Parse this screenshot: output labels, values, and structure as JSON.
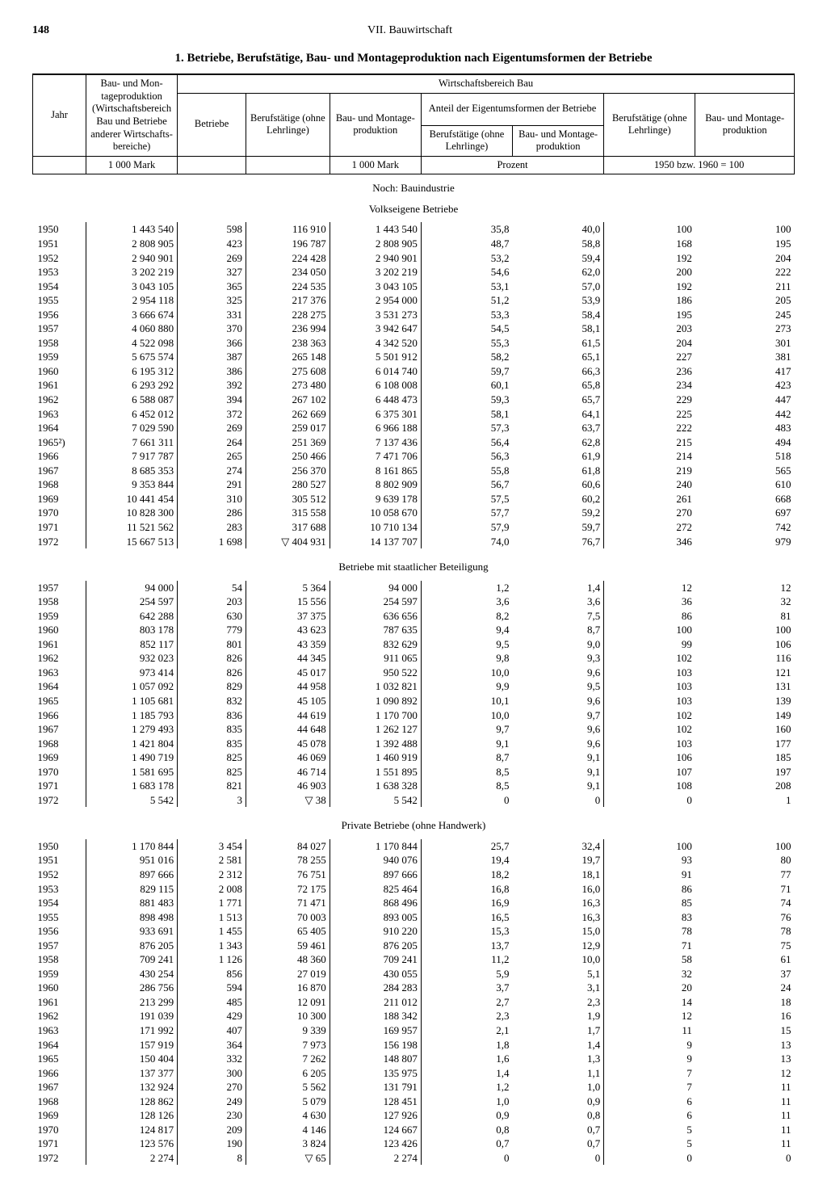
{
  "page_number": "148",
  "chapter": "VII. Bauwirtschaft",
  "title": "1. Betriebe, Berufstätige, Bau- und Montageproduktion nach Eigentumsformen der Betriebe",
  "headers": {
    "jahr": "Jahr",
    "col2": "Bau- und Mon­tageproduktion (Wirtschaftsbe­reich Bau und Betriebe anderer Wirtschafts­bereiche)",
    "wirtschaft": "Wirtschaftsbereich Bau",
    "betriebe": "Betriebe",
    "berufstaetige": "Berufstätige (ohne Lehrlinge)",
    "bau_montage": "Bau- und Montage­produktion",
    "anteil": "Anteil der Eigentumsformen der Betriebe",
    "anteil_beruf": "Berufstätige (ohne Lehrlinge)",
    "anteil_bau": "Bau- und Montage­produktion",
    "idx_beruf": "Berufstätige (ohne Lehrlinge)",
    "idx_bau": "Bau- und Montage­produktion",
    "unit_mark": "1 000 Mark",
    "unit_prozent": "Prozent",
    "unit_index": "1950 bzw. 1960 = 100"
  },
  "sections": {
    "main": "Noch: Bauindustrie",
    "s1": "Volkseigene Betriebe",
    "s2": "Betriebe mit staatlicher Beteiligung",
    "s3": "Private Betriebe (ohne Handwerk)"
  },
  "data": {
    "volkseigene": [
      [
        "1950",
        "1 443 540",
        "598",
        "116 910",
        "1 443 540",
        "35,8",
        "40,0",
        "100",
        "100"
      ],
      [
        "1951",
        "2 808 905",
        "423",
        "196 787",
        "2 808 905",
        "48,7",
        "58,8",
        "168",
        "195"
      ],
      [
        "1952",
        "2 940 901",
        "269",
        "224 428",
        "2 940 901",
        "53,2",
        "59,4",
        "192",
        "204"
      ],
      [
        "1953",
        "3 202 219",
        "327",
        "234 050",
        "3 202 219",
        "54,6",
        "62,0",
        "200",
        "222"
      ],
      [
        "1954",
        "3 043 105",
        "365",
        "224 535",
        "3 043 105",
        "53,1",
        "57,0",
        "192",
        "211"
      ],
      [
        "1955",
        "2 954 118",
        "325",
        "217 376",
        "2 954 000",
        "51,2",
        "53,9",
        "186",
        "205"
      ],
      [
        "1956",
        "3 666 674",
        "331",
        "228 275",
        "3 531 273",
        "53,3",
        "58,4",
        "195",
        "245"
      ],
      [
        "1957",
        "4 060 880",
        "370",
        "236 994",
        "3 942 647",
        "54,5",
        "58,1",
        "203",
        "273"
      ],
      [
        "1958",
        "4 522 098",
        "366",
        "238 363",
        "4 342 520",
        "55,3",
        "61,5",
        "204",
        "301"
      ],
      [
        "1959",
        "5 675 574",
        "387",
        "265 148",
        "5 501 912",
        "58,2",
        "65,1",
        "227",
        "381"
      ],
      [
        "1960",
        "6 195 312",
        "386",
        "275 608",
        "6 014 740",
        "59,7",
        "66,3",
        "236",
        "417"
      ],
      [
        "1961",
        "6 293 292",
        "392",
        "273 480",
        "6 108 008",
        "60,1",
        "65,8",
        "234",
        "423"
      ],
      [
        "1962",
        "6 588 087",
        "394",
        "267 102",
        "6 448 473",
        "59,3",
        "65,7",
        "229",
        "447"
      ],
      [
        "1963",
        "6 452 012",
        "372",
        "262 669",
        "6 375 301",
        "58,1",
        "64,1",
        "225",
        "442"
      ],
      [
        "1964",
        "7 029 590",
        "269",
        "259 017",
        "6 966 188",
        "57,3",
        "63,7",
        "222",
        "483"
      ],
      [
        "1965²)",
        "7 661 311",
        "264",
        "251 369",
        "7 137 436",
        "56,4",
        "62,8",
        "215",
        "494"
      ],
      [
        "1966",
        "7 917 787",
        "265",
        "250 466",
        "7 471 706",
        "56,3",
        "61,9",
        "214",
        "518"
      ],
      [
        "1967",
        "8 685 353",
        "274",
        "256 370",
        "8 161 865",
        "55,8",
        "61,8",
        "219",
        "565"
      ],
      [
        "1968",
        "9 353 844",
        "291",
        "280 527",
        "8 802 909",
        "56,7",
        "60,6",
        "240",
        "610"
      ],
      [
        "1969",
        "10 441 454",
        "310",
        "305 512",
        "9 639 178",
        "57,5",
        "60,2",
        "261",
        "668"
      ],
      [
        "1970",
        "10 828 300",
        "286",
        "315 558",
        "10 058 670",
        "57,7",
        "59,2",
        "270",
        "697"
      ],
      [
        "1971",
        "11 521 562",
        "283",
        "317 688",
        "10 710 134",
        "57,9",
        "59,7",
        "272",
        "742"
      ],
      [
        "1972",
        "15 667 513",
        "1 698",
        "▽ 404 931",
        "14 137 707",
        "74,0",
        "76,7",
        "346",
        "979"
      ]
    ],
    "staatlich": [
      [
        "1957",
        "94 000",
        "54",
        "5 364",
        "94 000",
        "1,2",
        "1,4",
        "12",
        "12"
      ],
      [
        "1958",
        "254 597",
        "203",
        "15 556",
        "254 597",
        "3,6",
        "3,6",
        "36",
        "32"
      ],
      [
        "1959",
        "642 288",
        "630",
        "37 375",
        "636 656",
        "8,2",
        "7,5",
        "86",
        "81"
      ],
      [
        "1960",
        "803 178",
        "779",
        "43 623",
        "787 635",
        "9,4",
        "8,7",
        "100",
        "100"
      ],
      [
        "1961",
        "852 117",
        "801",
        "43 359",
        "832 629",
        "9,5",
        "9,0",
        "99",
        "106"
      ],
      [
        "1962",
        "932 023",
        "826",
        "44 345",
        "911 065",
        "9,8",
        "9,3",
        "102",
        "116"
      ],
      [
        "1963",
        "973 414",
        "826",
        "45 017",
        "950 522",
        "10,0",
        "9,6",
        "103",
        "121"
      ],
      [
        "1964",
        "1 057 092",
        "829",
        "44 958",
        "1 032 821",
        "9,9",
        "9,5",
        "103",
        "131"
      ],
      [
        "1965",
        "1 105 681",
        "832",
        "45 105",
        "1 090 892",
        "10,1",
        "9,6",
        "103",
        "139"
      ],
      [
        "1966",
        "1 185 793",
        "836",
        "44 619",
        "1 170 700",
        "10,0",
        "9,7",
        "102",
        "149"
      ],
      [
        "1967",
        "1 279 493",
        "835",
        "44 648",
        "1 262 127",
        "9,7",
        "9,6",
        "102",
        "160"
      ],
      [
        "1968",
        "1 421 804",
        "835",
        "45 078",
        "1 392 488",
        "9,1",
        "9,6",
        "103",
        "177"
      ],
      [
        "1969",
        "1 490 719",
        "825",
        "46 069",
        "1 460 919",
        "8,7",
        "9,1",
        "106",
        "185"
      ],
      [
        "1970",
        "1 581 695",
        "825",
        "46 714",
        "1 551 895",
        "8,5",
        "9,1",
        "107",
        "197"
      ],
      [
        "1971",
        "1 683 178",
        "821",
        "46 903",
        "1 638 328",
        "8,5",
        "9,1",
        "108",
        "208"
      ],
      [
        "1972",
        "5 542",
        "3",
        "▽ 38",
        "5 542",
        "0",
        "0",
        "0",
        "1"
      ]
    ],
    "privat": [
      [
        "1950",
        "1 170 844",
        "3 454",
        "84 027",
        "1 170 844",
        "25,7",
        "32,4",
        "100",
        "100"
      ],
      [
        "1951",
        "951 016",
        "2 581",
        "78 255",
        "940 076",
        "19,4",
        "19,7",
        "93",
        "80"
      ],
      [
        "1952",
        "897 666",
        "2 312",
        "76 751",
        "897 666",
        "18,2",
        "18,1",
        "91",
        "77"
      ],
      [
        "1953",
        "829 115",
        "2 008",
        "72 175",
        "825 464",
        "16,8",
        "16,0",
        "86",
        "71"
      ],
      [
        "1954",
        "881 483",
        "1 771",
        "71 471",
        "868 496",
        "16,9",
        "16,3",
        "85",
        "74"
      ],
      [
        "1955",
        "898 498",
        "1 513",
        "70 003",
        "893 005",
        "16,5",
        "16,3",
        "83",
        "76"
      ],
      [
        "1956",
        "933 691",
        "1 455",
        "65 405",
        "910 220",
        "15,3",
        "15,0",
        "78",
        "78"
      ],
      [
        "1957",
        "876 205",
        "1 343",
        "59 461",
        "876 205",
        "13,7",
        "12,9",
        "71",
        "75"
      ],
      [
        "1958",
        "709 241",
        "1 126",
        "48 360",
        "709 241",
        "11,2",
        "10,0",
        "58",
        "61"
      ],
      [
        "1959",
        "430 254",
        "856",
        "27 019",
        "430 055",
        "5,9",
        "5,1",
        "32",
        "37"
      ],
      [
        "1960",
        "286 756",
        "594",
        "16 870",
        "284 283",
        "3,7",
        "3,1",
        "20",
        "24"
      ],
      [
        "1961",
        "213 299",
        "485",
        "12 091",
        "211 012",
        "2,7",
        "2,3",
        "14",
        "18"
      ],
      [
        "1962",
        "191 039",
        "429",
        "10 300",
        "188 342",
        "2,3",
        "1,9",
        "12",
        "16"
      ],
      [
        "1963",
        "171 992",
        "407",
        "9 339",
        "169 957",
        "2,1",
        "1,7",
        "11",
        "15"
      ],
      [
        "1964",
        "157 919",
        "364",
        "7 973",
        "156 198",
        "1,8",
        "1,4",
        "9",
        "13"
      ],
      [
        "1965",
        "150 404",
        "332",
        "7 262",
        "148 807",
        "1,6",
        "1,3",
        "9",
        "13"
      ],
      [
        "1966",
        "137 377",
        "300",
        "6 205",
        "135 975",
        "1,4",
        "1,1",
        "7",
        "12"
      ],
      [
        "1967",
        "132 924",
        "270",
        "5 562",
        "131 791",
        "1,2",
        "1,0",
        "7",
        "11"
      ],
      [
        "1968",
        "128 862",
        "249",
        "5 079",
        "128 451",
        "1,0",
        "0,9",
        "6",
        "11"
      ],
      [
        "1969",
        "128 126",
        "230",
        "4 630",
        "127 926",
        "0,9",
        "0,8",
        "6",
        "11"
      ],
      [
        "1970",
        "124 817",
        "209",
        "4 146",
        "124 667",
        "0,8",
        "0,7",
        "5",
        "11"
      ],
      [
        "1971",
        "123 576",
        "190",
        "3 824",
        "123 426",
        "0,7",
        "0,7",
        "5",
        "11"
      ],
      [
        "1972",
        "2 274",
        "8",
        "▽ 65",
        "2 274",
        "0",
        "0",
        "0",
        "0"
      ]
    ]
  }
}
